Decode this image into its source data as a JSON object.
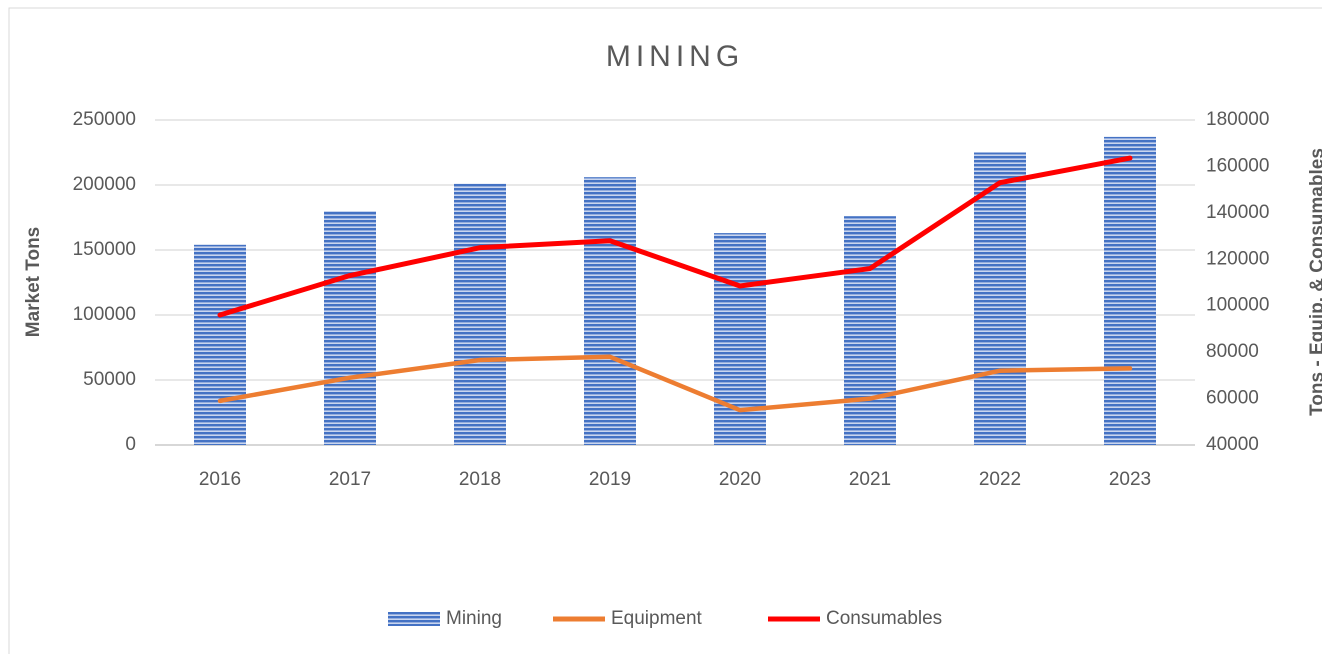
{
  "chart_data": {
    "type": "bar_line",
    "title": "MINING",
    "categories": [
      "2016",
      "2017",
      "2018",
      "2019",
      "2020",
      "2021",
      "2022",
      "2023"
    ],
    "ylabel": "Market Tons",
    "y2label": "Tons - Equip. & Consumables",
    "ylim": [
      0,
      250000
    ],
    "yticks": [
      0,
      50000,
      100000,
      150000,
      200000,
      250000
    ],
    "y2lim": [
      40000,
      180000
    ],
    "y2ticks": [
      40000,
      60000,
      80000,
      100000,
      120000,
      140000,
      160000,
      180000
    ],
    "grid": true,
    "legend": "bottom",
    "series": [
      {
        "name": "Mining",
        "type": "bar",
        "color": "#4472c4",
        "values": [
          154000,
          180000,
          201000,
          206000,
          163000,
          176000,
          225000,
          237000
        ]
      },
      {
        "name": "Equipment",
        "type": "line",
        "axis": "y2",
        "color": "#ed7d31",
        "values": [
          59000,
          69000,
          76600,
          78000,
          55000,
          60000,
          72000,
          73000
        ]
      },
      {
        "name": "Consumables",
        "type": "line",
        "axis": "y2",
        "color": "#ff0000",
        "values": [
          96000,
          113000,
          125000,
          128000,
          108500,
          116000,
          153000,
          163600
        ]
      }
    ]
  }
}
